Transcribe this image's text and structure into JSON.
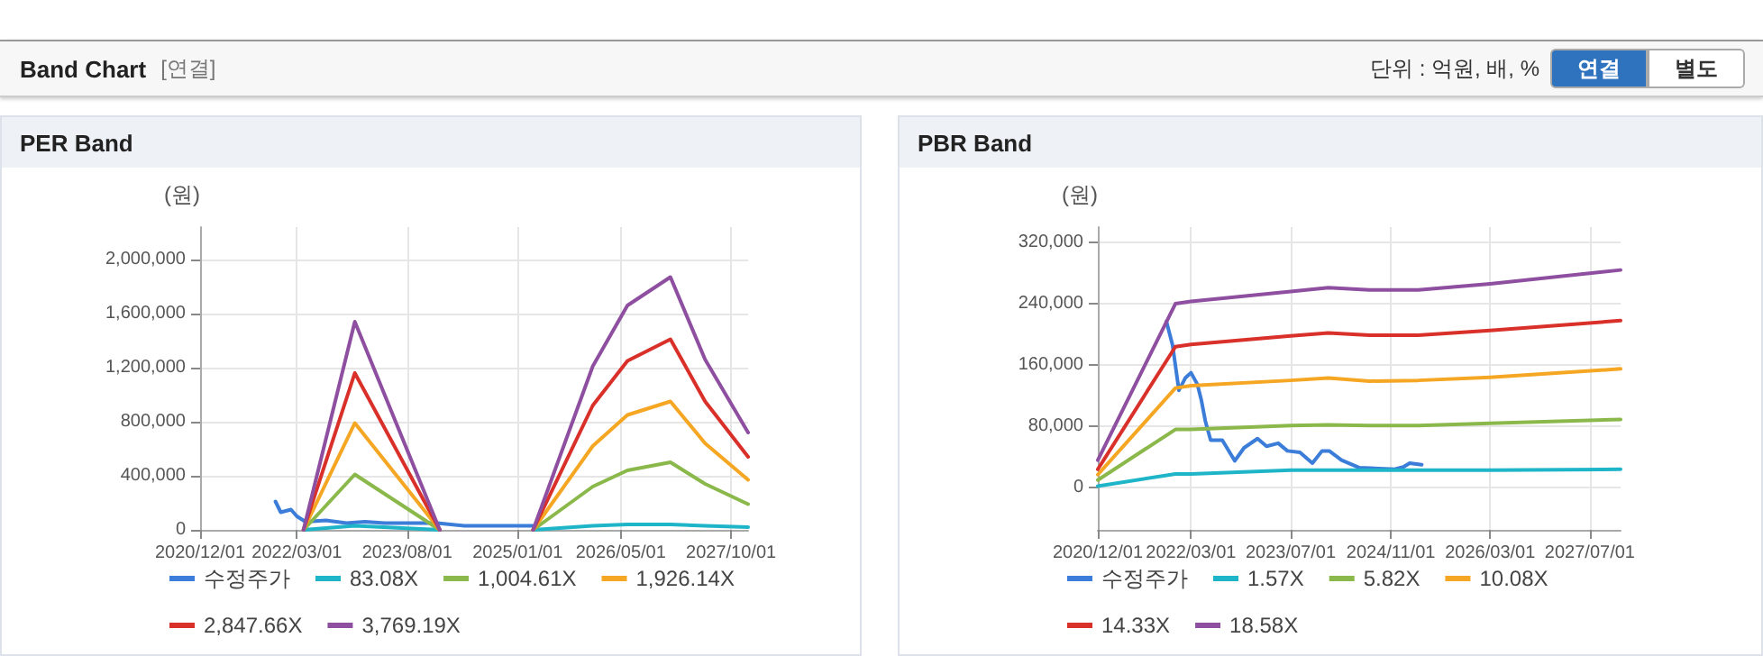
{
  "chart_data": [
    {
      "type": "line",
      "title": "PER Band",
      "ylabel": "(원)",
      "annotations": [
        "Band Chart",
        "[연결]",
        "단위 : 억원, 배, %",
        "연결",
        "별도"
      ],
      "xlim": [
        "2020-12-01",
        "2027-12-20"
      ],
      "xticks": [
        {
          "value": "2020-12-01",
          "label": "2020/12/01"
        },
        {
          "value": "2022-03-01",
          "label": "2022/03/01"
        },
        {
          "value": "2023-08-01",
          "label": "2023/08/01"
        },
        {
          "value": "2025-01-01",
          "label": "2025/01/01"
        },
        {
          "value": "2026-05-01",
          "label": "2026/05/01"
        },
        {
          "value": "2027-10-01",
          "label": "2027/10/01"
        }
      ],
      "ylim": [
        0,
        2240000
      ],
      "yticks": [
        {
          "value": 0,
          "label": "0"
        },
        {
          "value": 400000,
          "label": "400,000"
        },
        {
          "value": 800000,
          "label": "800,000"
        },
        {
          "value": 1200000,
          "label": "1,200,000"
        },
        {
          "value": 1600000,
          "label": "1,600,000"
        },
        {
          "value": 2000000,
          "label": "2,000,000"
        }
      ],
      "grid": true,
      "legend": "bottom",
      "marker": "none",
      "line_style": "solid",
      "series": [
        {
          "name": "수정주가",
          "color": "#3b7dd8",
          "x": [
            "2021-11-20",
            "2021-12-15",
            "2022-02-01",
            "2022-03-01",
            "2022-04-10",
            "2022-07-15",
            "2022-10-20",
            "2023-01-15",
            "2023-04-15",
            "2023-08-20",
            "2023-12-20",
            "2024-04-25",
            "2025-03-15"
          ],
          "values": [
            210000,
            130000,
            150000,
            100000,
            60000,
            70000,
            50000,
            60000,
            50000,
            50000,
            50000,
            30000,
            30000
          ]
        },
        {
          "name": "83.08X",
          "color": "#1fb5c9",
          "x": [
            "2022-04-01",
            "2022-11-28",
            "2024-01-01",
            "2024-08-01",
            "2025-03-15",
            "2025-12-20",
            "2026-06-01",
            "2026-12-20",
            "2027-06-01",
            "2027-12-20"
          ],
          "values": [
            0,
            30000,
            0,
            null,
            0,
            30000,
            40000,
            40000,
            30000,
            20000
          ]
        },
        {
          "name": "1,004.61X",
          "color": "#8bb84a",
          "x": [
            "2022-04-01",
            "2022-11-28",
            "2024-01-01",
            "2024-08-01",
            "2025-03-15",
            "2025-12-20",
            "2026-06-01",
            "2026-12-20",
            "2027-06-01",
            "2027-12-20"
          ],
          "values": [
            0,
            410000,
            0,
            null,
            0,
            320000,
            440000,
            500000,
            340000,
            190000
          ]
        },
        {
          "name": "1,926.14X",
          "color": "#f5a623",
          "x": [
            "2022-04-01",
            "2022-11-28",
            "2024-01-01",
            "2024-08-01",
            "2025-03-15",
            "2025-12-20",
            "2026-06-01",
            "2026-12-20",
            "2027-06-01",
            "2027-12-20"
          ],
          "values": [
            0,
            790000,
            0,
            null,
            0,
            620000,
            850000,
            950000,
            640000,
            370000
          ]
        },
        {
          "name": "2,847.66X",
          "color": "#d9302a",
          "x": [
            "2022-04-01",
            "2022-11-28",
            "2024-01-01",
            "2024-08-01",
            "2025-03-15",
            "2025-12-20",
            "2026-06-01",
            "2026-12-20",
            "2027-06-01",
            "2027-12-20"
          ],
          "values": [
            0,
            1160000,
            0,
            null,
            0,
            920000,
            1250000,
            1410000,
            950000,
            540000
          ]
        },
        {
          "name": "3,769.19X",
          "color": "#8e4fa0",
          "x": [
            "2022-04-01",
            "2022-11-28",
            "2024-01-01",
            "2024-08-01",
            "2025-03-15",
            "2025-12-20",
            "2026-06-01",
            "2026-12-20",
            "2027-06-01",
            "2027-12-20"
          ],
          "values": [
            0,
            1540000,
            0,
            null,
            0,
            1210000,
            1660000,
            1870000,
            1260000,
            720000
          ]
        }
      ]
    },
    {
      "type": "line",
      "title": "PBR Band",
      "ylabel": "(원)",
      "xlim": [
        "2020-12-01",
        "2027-11-28"
      ],
      "xticks": [
        {
          "value": "2020-12-01",
          "label": "2020/12/01"
        },
        {
          "value": "2022-03-01",
          "label": "2022/03/01"
        },
        {
          "value": "2023-07-01",
          "label": "2023/07/01"
        },
        {
          "value": "2024-11-01",
          "label": "2024/11/01"
        },
        {
          "value": "2026-03-01",
          "label": "2026/03/01"
        },
        {
          "value": "2027-07-01",
          "label": "2027/07/01"
        }
      ],
      "ylim": [
        -55000,
        340000
      ],
      "yticks": [
        {
          "value": 0,
          "label": "0"
        },
        {
          "value": 80000,
          "label": "80,000"
        },
        {
          "value": 160000,
          "label": "160,000"
        },
        {
          "value": 240000,
          "label": "240,000"
        },
        {
          "value": 320000,
          "label": "320,000"
        }
      ],
      "grid": true,
      "legend": "bottom",
      "marker": "none",
      "line_style": "solid",
      "series": [
        {
          "name": "수정주가",
          "color": "#3b7dd8",
          "x": [
            "2021-11-01",
            "2021-12-01",
            "2022-01-01",
            "2022-02-01",
            "2022-03-01",
            "2022-04-01",
            "2022-04-20",
            "2022-05-10",
            "2022-06-05",
            "2022-08-01",
            "2022-10-01",
            "2022-11-15",
            "2023-01-20",
            "2023-03-05",
            "2023-05-01",
            "2023-06-15",
            "2023-08-15",
            "2023-10-15",
            "2023-12-01",
            "2024-01-05",
            "2024-03-05",
            "2024-06-01",
            "2024-11-20",
            "2025-01-01",
            "2025-02-01",
            "2025-04-01"
          ],
          "values": [
            217000,
            186000,
            127000,
            143000,
            150000,
            135000,
            115000,
            87000,
            62000,
            62000,
            35000,
            52000,
            64000,
            54000,
            58000,
            48000,
            46000,
            32000,
            48000,
            48000,
            36000,
            26000,
            24000,
            27000,
            32000,
            30000
          ]
        },
        {
          "name": "1.57X",
          "color": "#1fb5c9",
          "x": [
            "2020-12-01",
            "2021-12-15",
            "2022-03-01",
            "2023-07-01",
            "2024-01-01",
            "2024-07-20",
            "2025-03-15",
            "2026-03-01",
            "2027-11-28"
          ],
          "values": [
            2000,
            18000,
            18000,
            23000,
            23000,
            23000,
            23000,
            23000,
            24000
          ]
        },
        {
          "name": "5.82X",
          "color": "#8bb84a",
          "x": [
            "2020-12-01",
            "2021-12-15",
            "2022-03-01",
            "2023-07-01",
            "2024-01-01",
            "2024-07-20",
            "2025-03-15",
            "2026-03-01",
            "2027-11-28"
          ],
          "values": [
            10000,
            76000,
            76000,
            81000,
            82000,
            81000,
            81000,
            84000,
            89000
          ]
        },
        {
          "name": "10.08X",
          "color": "#f5a623",
          "x": [
            "2020-12-01",
            "2021-12-15",
            "2022-03-01",
            "2023-07-01",
            "2024-01-01",
            "2024-07-20",
            "2025-03-15",
            "2026-03-01",
            "2027-11-28"
          ],
          "values": [
            17000,
            130000,
            133000,
            140000,
            143000,
            139000,
            140000,
            144000,
            155000
          ]
        },
        {
          "name": "14.33X",
          "color": "#d9302a",
          "x": [
            "2020-12-01",
            "2021-12-15",
            "2022-03-01",
            "2023-07-01",
            "2024-01-01",
            "2024-07-20",
            "2025-03-15",
            "2026-03-01",
            "2027-11-28"
          ],
          "values": [
            24000,
            184000,
            187000,
            198000,
            202000,
            199000,
            199000,
            205000,
            218000
          ]
        },
        {
          "name": "18.58X",
          "color": "#8e4fa0",
          "x": [
            "2020-12-01",
            "2021-12-15",
            "2022-03-01",
            "2023-07-01",
            "2024-01-01",
            "2024-07-20",
            "2025-03-15",
            "2026-03-01",
            "2027-11-28"
          ],
          "values": [
            36000,
            240000,
            243000,
            256000,
            261000,
            258000,
            258000,
            266000,
            284000
          ]
        }
      ]
    }
  ]
}
